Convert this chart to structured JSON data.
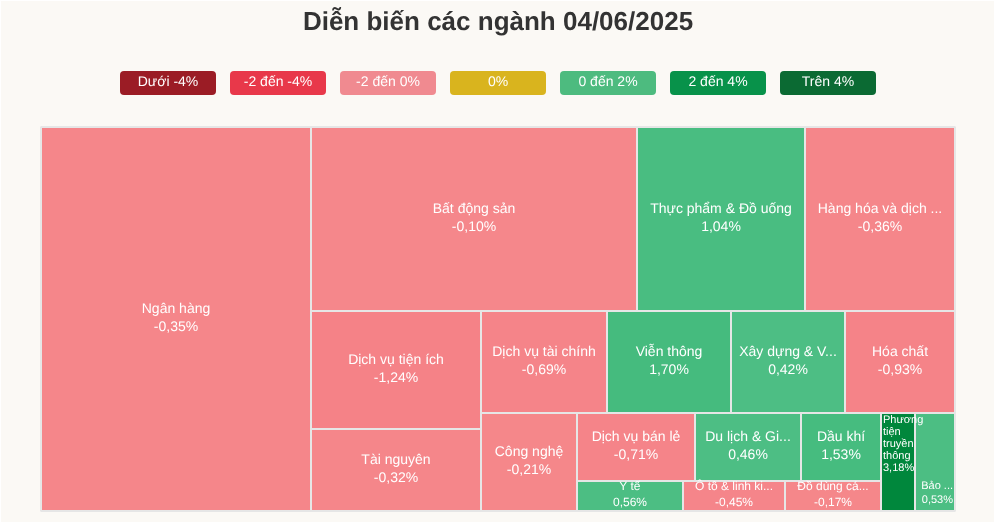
{
  "chart_data": {
    "type": "other",
    "title": "Diễn biến các ngành 04/06/2025",
    "annotations": [
      "Dưới -4%",
      "-2 đến -4%",
      "-2 đến 0%",
      "0%",
      "0 đến 2%",
      "2 đến 4%",
      "Trên 4%"
    ],
    "categories": [
      "Ngân hàng",
      "Bất động sản",
      "Thực phẩm & Đồ uống",
      "Hàng hóa và dịch ...",
      "Dịch vụ tiện ích",
      "Tài nguyên",
      "Dịch vụ tài chính",
      "Viễn thông",
      "Xây dựng & V...",
      "Hóa chất",
      "Công nghệ",
      "Dịch vụ bán lẻ",
      "Y tế",
      "Du lịch & Gi...",
      "Ô tô & linh ki...",
      "Dầu khí",
      "Đồ dùng cá...",
      "Phương tiện truyền thông",
      "Bảo ..."
    ],
    "values": [
      -0.35,
      -0.1,
      1.04,
      -0.36,
      -1.24,
      -0.32,
      -0.69,
      1.7,
      0.42,
      -0.93,
      -0.21,
      -0.71,
      0.56,
      0.46,
      -0.45,
      1.53,
      -0.17,
      3.18,
      0.53
    ],
    "value_labels": [
      "-0,35%",
      "-0,10%",
      "1,04%",
      "-0,36%",
      "-1,24%",
      "-0,32%",
      "-0,69%",
      "1,70%",
      "0,42%",
      "-0,93%",
      "-0,21%",
      "-0,71%",
      "0,56%",
      "0,46%",
      "-0,45%",
      "1,53%",
      "-0,17%",
      "3,18%",
      "0,53%"
    ],
    "colors": [
      "#f47a7f",
      "#f47a7f",
      "#3cb878",
      "#f47a7f",
      "#f47a7f",
      "#f47a7f",
      "#f47a7f",
      "#3cb878",
      "#3cb878",
      "#f47a7f",
      "#f47a7f",
      "#f47a7f",
      "#3cb878",
      "#3cb878",
      "#f47a7f",
      "#3cb878",
      "#f47a7f",
      "#00873c",
      "#3cb878"
    ]
  }
}
